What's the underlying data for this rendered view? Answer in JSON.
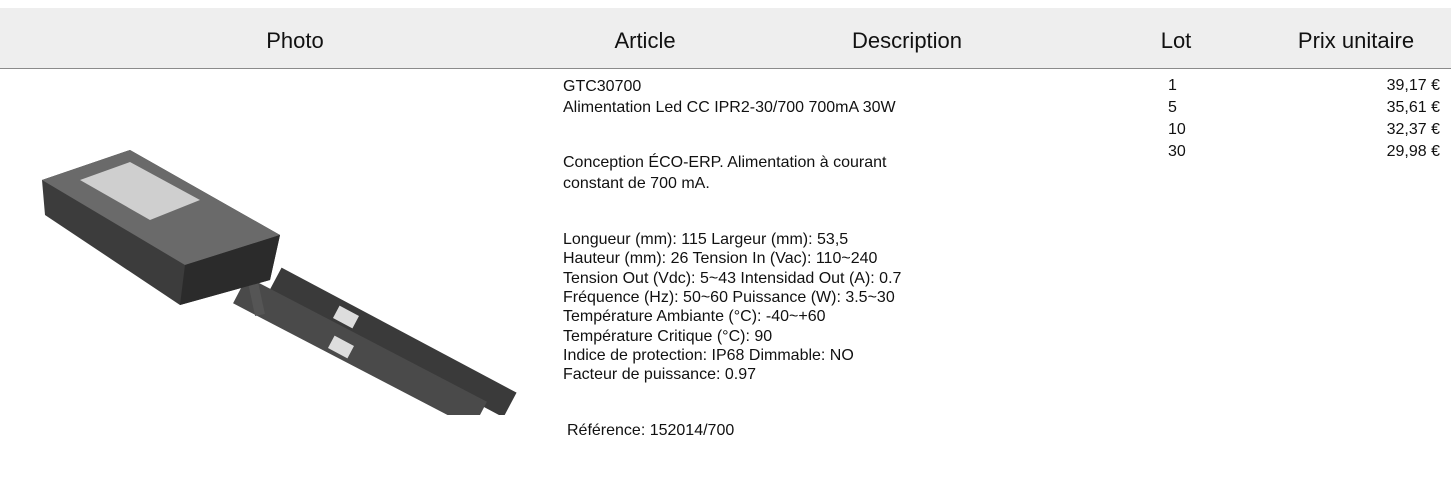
{
  "table": {
    "headers": [
      "Photo",
      "Article",
      "Description",
      "Lot",
      "Prix unitaire"
    ],
    "article": {
      "code": "GTC30700",
      "name": "Alimentation Led CC IPR2-30/700 700mA 30W",
      "summary": [
        "Conception ÉCO-ERP. Alimentation à courant",
        "constant de 700 mA."
      ],
      "specs": [
        "Longueur (mm): 115 Largeur (mm): 53,5",
        "Hauteur (mm): 26 Tension In (Vac): 110~240",
        "Tension Out (Vdc): 5~43 Intensidad Out (A): 0.7",
        "Fréquence (Hz): 50~60 Puissance (W): 3.5~30",
        "Température Ambiante (°C): -40~+60",
        "Température Critique (°C): 90",
        "Indice de protection: IP68 Dimmable: NO",
        "Facteur de puissance: 0.97"
      ],
      "reference": "Référence: 152014/700"
    },
    "prices": [
      {
        "lot": 1,
        "price": "39,17 €"
      },
      {
        "lot": 5,
        "price": "35,61 €"
      },
      {
        "lot": 10,
        "price": "32,37 €"
      },
      {
        "lot": 30,
        "price": "29,98 €"
      }
    ]
  }
}
